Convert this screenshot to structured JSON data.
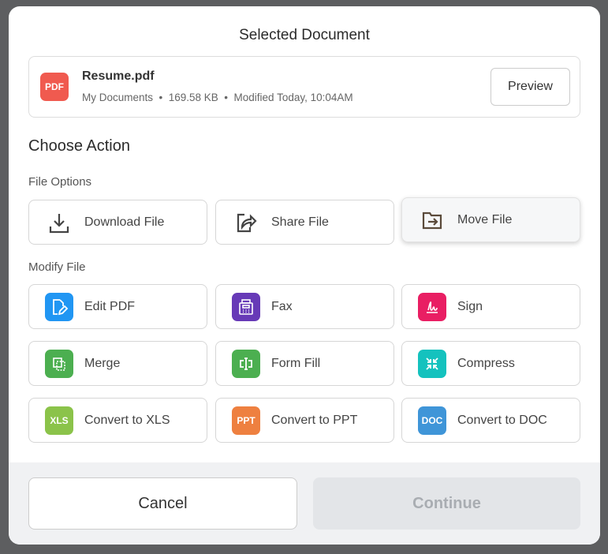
{
  "dialog": {
    "title": "Selected Document",
    "choose_action": "Choose Action"
  },
  "document": {
    "type_badge": "PDF",
    "name": "Resume.pdf",
    "meta": "My Documents  •  169.58 KB  •  Modified Today, 10:04AM",
    "preview_label": "Preview"
  },
  "file_options": {
    "heading": "File Options",
    "items": [
      {
        "label": "Download File",
        "icon": "download-icon"
      },
      {
        "label": "Share File",
        "icon": "share-icon"
      },
      {
        "label": "Move File",
        "icon": "folder-move-icon",
        "state": "hovered"
      }
    ]
  },
  "modify_file": {
    "heading": "Modify File",
    "items": [
      {
        "label": "Edit PDF",
        "icon": "edit-pdf-icon",
        "color": "#2196f3"
      },
      {
        "label": "Fax",
        "icon": "fax-icon",
        "color": "#673ab7"
      },
      {
        "label": "Sign",
        "icon": "signature-icon",
        "color": "#e91e63"
      },
      {
        "label": "Merge",
        "icon": "merge-icon",
        "color": "#4caf50"
      },
      {
        "label": "Form Fill",
        "icon": "form-fill-icon",
        "color": "#4caf50"
      },
      {
        "label": "Compress",
        "icon": "compress-icon",
        "color": "#14c2be"
      },
      {
        "label": "Convert to XLS",
        "icon": "xls-icon",
        "badge": "XLS",
        "color": "#8bc34a"
      },
      {
        "label": "Convert to PPT",
        "icon": "ppt-icon",
        "badge": "PPT",
        "color": "#ee8040"
      },
      {
        "label": "Convert to DOC",
        "icon": "doc-icon",
        "badge": "DOC",
        "color": "#3f95d8"
      }
    ]
  },
  "footer": {
    "cancel_label": "Cancel",
    "continue_label": "Continue",
    "continue_disabled": true
  }
}
